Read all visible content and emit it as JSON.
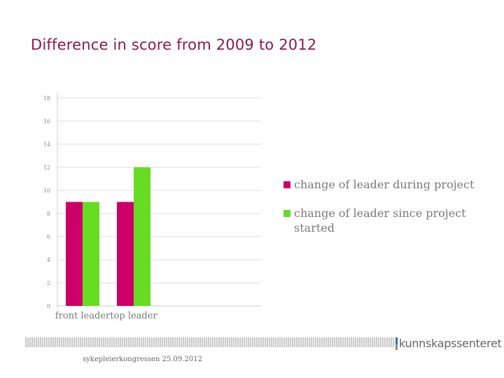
{
  "slide": {
    "title": "Difference in score from 2009 to 2012"
  },
  "chart_data": {
    "type": "bar",
    "categories": [
      "front leader",
      "top leader"
    ],
    "series": [
      {
        "name": "change of leader during project",
        "values": [
          9,
          9
        ],
        "color": "#cc0066"
      },
      {
        "name": "change of leader since project started",
        "values": [
          9,
          12
        ],
        "color": "#66dd22"
      }
    ],
    "ylim": [
      0,
      18
    ],
    "yticks": [
      0,
      2,
      4,
      6,
      8,
      10,
      12,
      14,
      16,
      18
    ],
    "grid": true,
    "legend_position": "right",
    "title": "",
    "xlabel": "",
    "ylabel": ""
  },
  "legend": {
    "items": [
      {
        "label": "change of leader during project",
        "color": "#cc0066"
      },
      {
        "label": "change of leader since project started",
        "color": "#66dd22"
      }
    ]
  },
  "footer": {
    "logo_text": "kunnskapssenteret",
    "note": "sykepleierkongressen 25.09.2012"
  }
}
